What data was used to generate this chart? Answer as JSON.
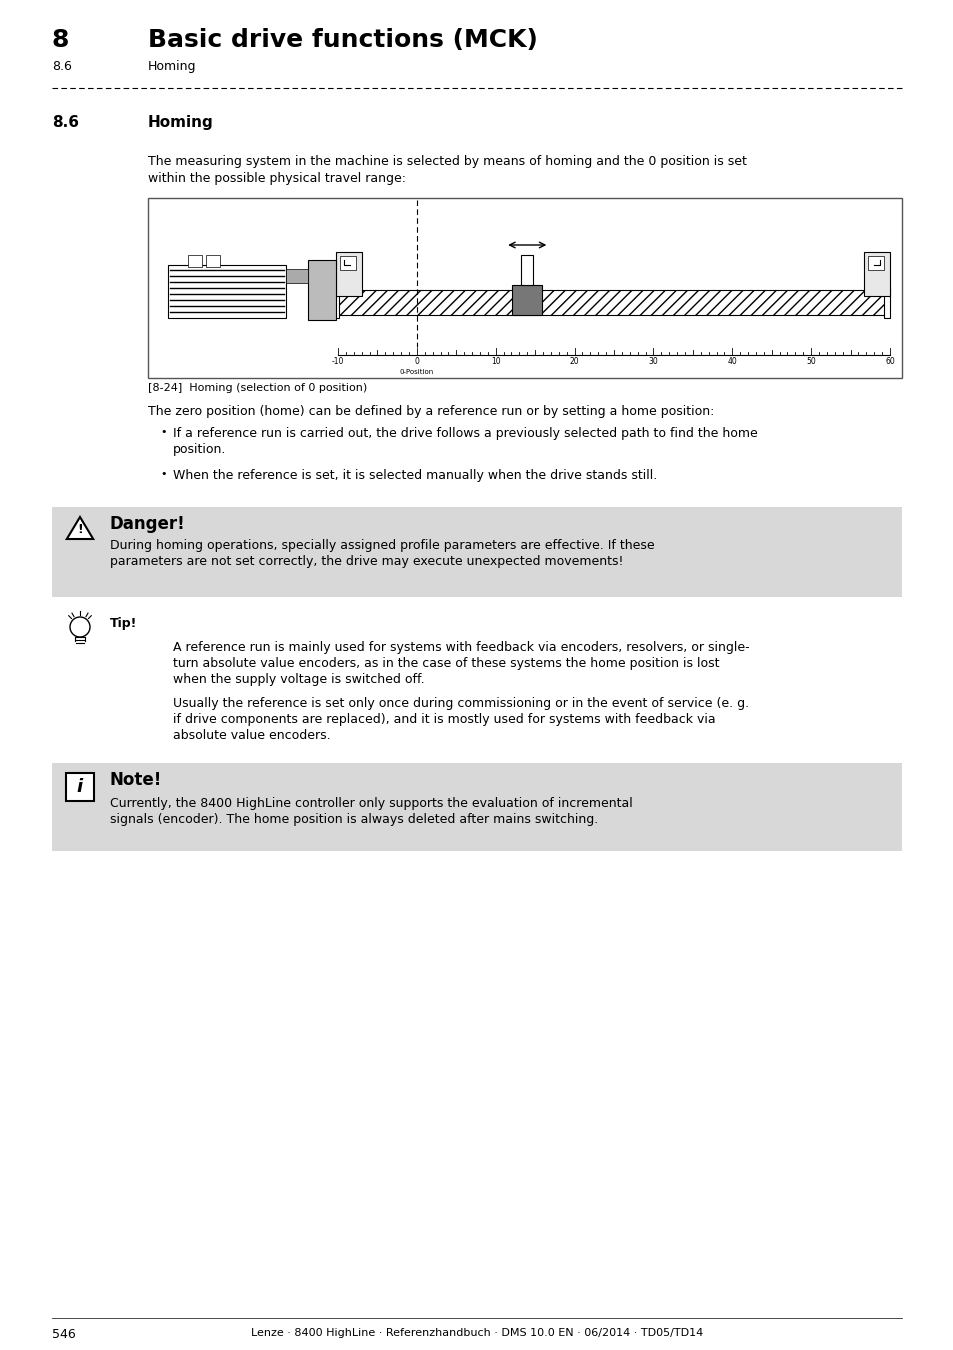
{
  "page_num": "546",
  "footer": "Lenze · 8400 HighLine · Referenzhandbuch · DMS 10.0 EN · 06/2014 · TD05/TD14",
  "chapter_num": "8",
  "chapter_title": "Basic drive functions (MCK)",
  "section_num": "8.6",
  "section_title": "Homing",
  "section_heading": "8.6",
  "section_heading_title": "Homing",
  "intro_line1": "The measuring system in the machine is selected by means of homing and the 0 position is set",
  "intro_line2": "within the possible physical travel range:",
  "figure_caption": "[8-24]  Homing (selection of 0 position)",
  "body_text1": "The zero position (home) can be defined by a reference run or by setting a home position:",
  "bullet1_line1": "If a reference run is carried out, the drive follows a previously selected path to find the home",
  "bullet1_line2": "position.",
  "bullet2": "When the reference is set, it is selected manually when the drive stands still.",
  "danger_title": "Danger!",
  "danger_line1": "During homing operations, specially assigned profile parameters are effective. If these",
  "danger_line2": "parameters are not set correctly, the drive may execute unexpected movements!",
  "tip_title": "Tip!",
  "tip1_line1": "A reference run is mainly used for systems with feedback via encoders, resolvers, or single-",
  "tip1_line2": "turn absolute value encoders, as in the case of these systems the home position is lost",
  "tip1_line3": "when the supply voltage is switched off.",
  "tip2_line1": "Usually the reference is set only once during commissioning or in the event of service (e. g.",
  "tip2_line2": "if drive components are replaced), and it is mostly used for systems with feedback via",
  "tip2_line3": "absolute value encoders.",
  "note_title": "Note!",
  "note_line1": "Currently, the 8400 HighLine controller only supports the evaluation of incremental",
  "note_line2": "signals (encoder). The home position is always deleted after mains switching.",
  "bg_color": "#ffffff",
  "gray_bg": "#d8d8d8",
  "text_color": "#000000"
}
